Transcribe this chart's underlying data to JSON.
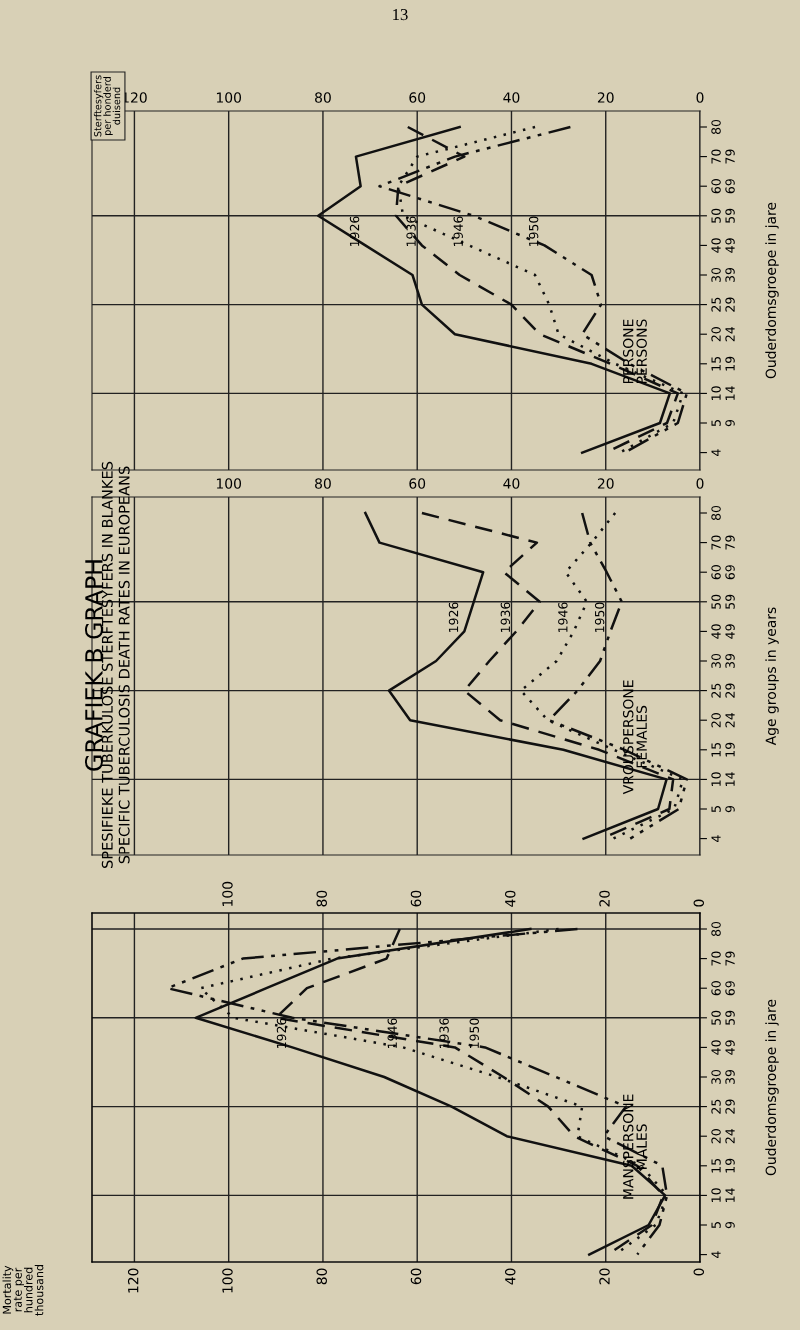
{
  "chart_data": [
    {
      "type": "line",
      "orientation": "horizontal",
      "title": "GRAFIEK B GRAPH",
      "subtitle": "SPESIFIEKE TUBERKULOSE STERFTESYFERS IN BLANKES\nSPECIFIC TUBERCULOSIS DEATH RATES IN EUROPEANS",
      "ylabel": "Ouderdomsgroepe in jare",
      "annotations": [
        "13",
        "PERSONE\nPERSONS",
        "Sterftesyfers\nper honderd\nduisend"
      ],
      "categories": [
        "80",
        "70\n79",
        "60\n69",
        "50\n59",
        "40\n49",
        "30\n39",
        "25\n29",
        "20\n24",
        "15\n19",
        "10\n14",
        "5\n9",
        "4"
      ],
      "xlim": [
        129,
        0
      ],
      "xticks": [
        120,
        100,
        80,
        60,
        40,
        20,
        0
      ],
      "grid": true,
      "ref_lines": [
        {
          "axis": "y",
          "value": "50\n59"
        },
        {
          "axis": "y",
          "value": "25\n29"
        },
        {
          "axis": "y",
          "value": "10\n14"
        }
      ],
      "series": [
        {
          "name": "1926",
          "color": "#111111",
          "line_style": "solid",
          "values": [
            51,
            73,
            72,
            81,
            71,
            61,
            59,
            52,
            23,
            6.4,
            8.5,
            25
          ]
        },
        {
          "name": "1936",
          "color": "#111111",
          "line_style": "dashed",
          "values": [
            62,
            50,
            64,
            64.5,
            59,
            51,
            40,
            34,
            19,
            4.7,
            7,
            20
          ]
        },
        {
          "name": "1946",
          "color": "#111111",
          "line_style": "dotted",
          "values": [
            35,
            60,
            64,
            63,
            49,
            35,
            32,
            30,
            18,
            3.6,
            5.7,
            17
          ]
        },
        {
          "name": "1950",
          "color": "#111111",
          "line_style": "dashdot",
          "values": [
            27.5,
            52,
            68,
            48,
            33,
            23,
            21,
            25,
            15,
            2.8,
            4.7,
            16
          ]
        }
      ]
    },
    {
      "type": "line",
      "orientation": "horizontal",
      "ylabel": "Age groups in years",
      "annotations": [
        "VROUSPERSONE\nFEMALES"
      ],
      "categories": [
        "80",
        "70\n79",
        "60\n69",
        "50\n59",
        "40\n49",
        "30\n39",
        "25\n29",
        "20\n24",
        "15\n19",
        "10\n14",
        "5\n9",
        "4"
      ],
      "xlim": [
        129,
        0
      ],
      "xticks": [
        {
          "value": 120,
          "label": null
        },
        100,
        80,
        60,
        40,
        20,
        0
      ],
      "grid": true,
      "ref_lines": [
        {
          "axis": "y",
          "value": "50\n59"
        },
        {
          "axis": "y",
          "value": "25\n29"
        },
        {
          "axis": "y",
          "value": "10\n14"
        }
      ],
      "series": [
        {
          "name": "1926",
          "color": "#111111",
          "line_style": "solid",
          "values": [
            71,
            68,
            46,
            48,
            50,
            56,
            66,
            61.5,
            29,
            7.1,
            8.9,
            24.7
          ]
        },
        {
          "name": "1936",
          "color": "#111111",
          "line_style": "dashed",
          "values": [
            59,
            34.6,
            41.6,
            34,
            39,
            44.7,
            50,
            42.4,
            21.4,
            5.7,
            6.5,
            20.8
          ]
        },
        {
          "name": "1946",
          "color": "#111111",
          "line_style": "dotted",
          "values": [
            18,
            23,
            28.5,
            24,
            26.8,
            30.4,
            38,
            32.3,
            18.3,
            3.6,
            5.5,
            18.4
          ]
        },
        {
          "name": "1950",
          "color": "#111111",
          "line_style": "dashdot",
          "values": [
            25,
            23.3,
            19.8,
            16.6,
            19,
            21.2,
            26,
            32,
            16,
            2.8,
            4.5,
            14.8
          ]
        }
      ]
    },
    {
      "type": "line",
      "orientation": "horizontal",
      "ylabel": "Ouderdomsgroepe in jare",
      "annotations": [
        "MANSPERSONE\nMALES",
        "Mortality\nrate per\nhundred\nthousand"
      ],
      "categories": [
        "80",
        "70\n79",
        "60\n69",
        "50\n59",
        "40\n49",
        "30\n39",
        "25\n29",
        "20\n24",
        "15\n19",
        "10\n14",
        "5\n9",
        "4"
      ],
      "xlim": [
        129,
        0
      ],
      "xticks": [
        120,
        100,
        80,
        60,
        40,
        20,
        0
      ],
      "x2lim": [
        129,
        0
      ],
      "x2ticks": [
        100,
        80,
        60,
        40,
        20,
        0
      ],
      "grid": true,
      "ref_lines": [
        {
          "axis": "y",
          "value": "80"
        },
        {
          "axis": "y",
          "value": "50\n59"
        },
        {
          "axis": "y",
          "value": "25\n29"
        },
        {
          "axis": "y",
          "value": "10\n14"
        }
      ],
      "series": [
        {
          "name": "1926",
          "color": "#111111",
          "line_style": "solid",
          "values": [
            36,
            77,
            92,
            107,
            86.5,
            67,
            52.7,
            41,
            14.5,
            7.4,
            10.9,
            23.5
          ]
        },
        {
          "name": "1936",
          "color": "#111111",
          "line_style": "dashed",
          "values": [
            63.7,
            66.5,
            83.4,
            90,
            52,
            41.7,
            32.2,
            26.7,
            13.3,
            7.8,
            10.2,
            19.6
          ]
        },
        {
          "name": "1946",
          "color": "#111111",
          "line_style": "dotted",
          "values": [
            30,
            78,
            106,
            99,
            63,
            43,
            25,
            26,
            12.5,
            7,
            9.4,
            18
          ]
        },
        {
          "name": "1950",
          "color": "#111111",
          "line_style": "dashdot",
          "values": [
            26,
            97,
            113,
            86.5,
            45.6,
            30.6,
            15.7,
            20.4,
            8,
            7,
            8.6,
            13.3
          ]
        }
      ]
    }
  ]
}
